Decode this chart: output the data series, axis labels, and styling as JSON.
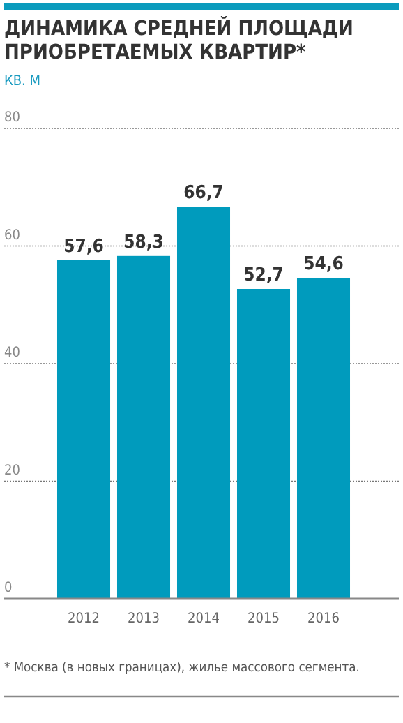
{
  "chart_data": {
    "type": "bar",
    "title": "ДИНАМИКА СРЕДНЕЙ ПЛОЩАДИ ПРИОБРЕТАЕМЫХ КВАРТИР*",
    "ylabel": "КВ. М",
    "categories": [
      "2012",
      "2013",
      "2014",
      "2015",
      "2016"
    ],
    "values": [
      57.6,
      58.3,
      66.7,
      52.7,
      54.6
    ],
    "value_labels": [
      "57,6",
      "58,3",
      "66,7",
      "52,7",
      "54,6"
    ],
    "color": "#009bbd",
    "ylim": [
      0,
      80
    ],
    "yticks": [
      0,
      20,
      40,
      60,
      80
    ],
    "grid": "y",
    "annotations": [
      "* Москва (в новых границах), жилье массового сегмента."
    ]
  }
}
